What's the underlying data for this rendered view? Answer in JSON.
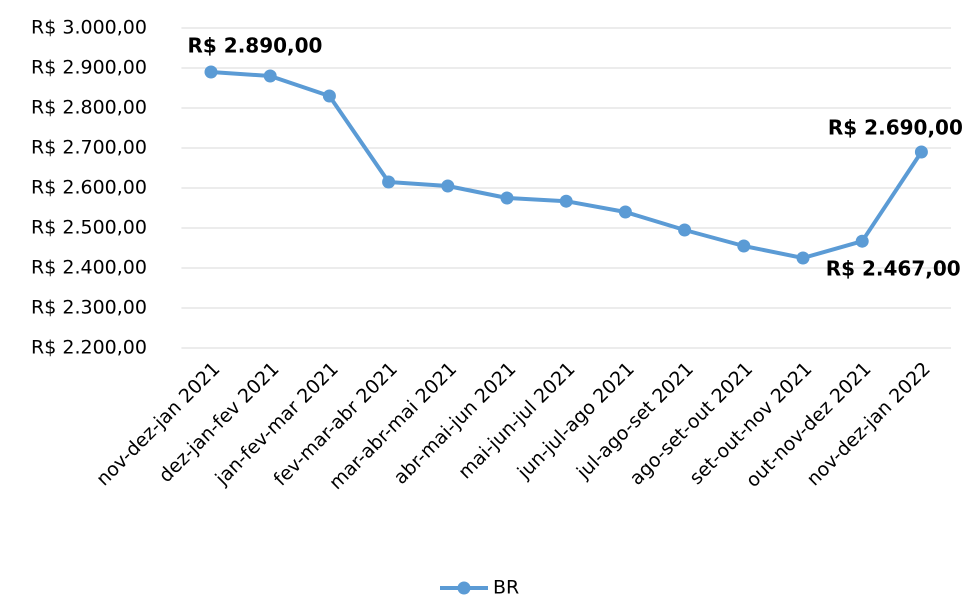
{
  "chart_data": {
    "type": "line",
    "categories": [
      "nov-dez-jan 2021",
      "dez-jan-fev 2021",
      "jan-fev-mar 2021",
      "fev-mar-abr 2021",
      "mar-abr-mai 2021",
      "abr-mai-jun 2021",
      "mai-jun-jul 2021",
      "jun-jul-ago 2021",
      "jul-ago-set 2021",
      "ago-set-out 2021",
      "set-out-nov 2021",
      "out-nov-dez 2021",
      "nov-dez-jan 2022"
    ],
    "series": [
      {
        "name": "BR",
        "color": "#5b9bd5",
        "values": [
          2890,
          2880,
          2830,
          2615,
          2605,
          2575,
          2567,
          2540,
          2495,
          2455,
          2425,
          2467,
          2690
        ],
        "value_labels": [
          "R$ 2.890,00",
          null,
          null,
          null,
          null,
          null,
          null,
          null,
          null,
          null,
          null,
          "R$ 2.467,00",
          "R$ 2.690,00"
        ]
      }
    ],
    "ylim": [
      2200,
      3000
    ],
    "yticks": [
      {
        "value": 2200,
        "label": "R$ 2.200,00"
      },
      {
        "value": 2300,
        "label": "R$ 2.300,00"
      },
      {
        "value": 2400,
        "label": "R$ 2.400,00"
      },
      {
        "value": 2500,
        "label": "R$ 2.500,00"
      },
      {
        "value": 2600,
        "label": "R$ 2.600,00"
      },
      {
        "value": 2700,
        "label": "R$ 2.700,00"
      },
      {
        "value": 2800,
        "label": "R$ 2.800,00"
      },
      {
        "value": 2900,
        "label": "R$ 2.900,00"
      },
      {
        "value": 3000,
        "label": "R$ 3.000,00"
      }
    ],
    "grid": true,
    "legend": "bottom"
  }
}
